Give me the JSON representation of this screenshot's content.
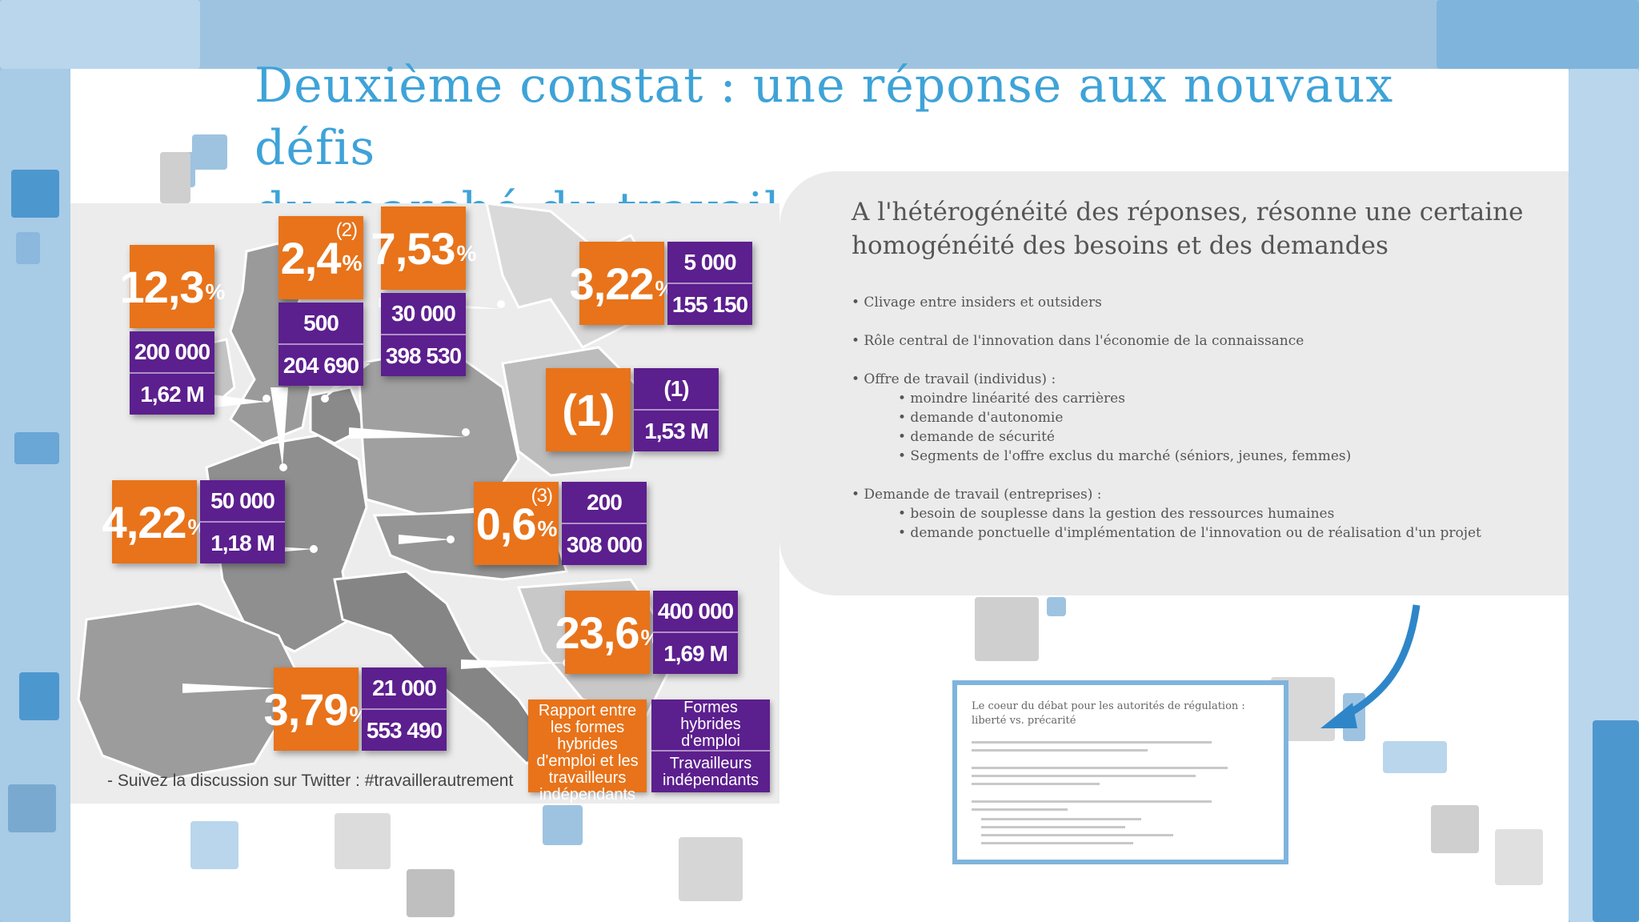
{
  "title": {
    "line1": "Deuxième constat : une réponse aux nouvaux défis",
    "line2": "du marché du travail en Europe"
  },
  "right_panel": {
    "heading": "A l'hétérogénéité des réponses, résonne une certaine homogénéité des besoins et des demandes",
    "bullets": [
      "• Clivage entre insiders et outsiders",
      "• Rôle central de l'innovation dans l'économie de la connaissance",
      "• Offre de travail (individus) :",
      "• moindre linéarité des carrières",
      "• demande d'autonomie",
      "• demande de sécurité",
      "• Segments de l'offre exclus du marché (séniors, jeunes, femmes)",
      "• Demande de travail (entreprises) :",
      "• besoin de souplesse dans la gestion des ressources humaines",
      "• demande ponctuelle d'implémentation de l'innovation ou de réalisation d'un projet"
    ]
  },
  "map": {
    "uk": {
      "pct": "12,3",
      "unit": "%",
      "hybrid": "200 000",
      "indep": "1,62 M"
    },
    "be": {
      "pct": "2,4",
      "unit": "%",
      "note": "(2)",
      "hybrid": "500",
      "indep": "204 690"
    },
    "nl": {
      "pct": "7,53",
      "unit": "%",
      "hybrid": "30 000",
      "indep": "398 530"
    },
    "se": {
      "pct": "3,22",
      "unit": "%",
      "hybrid": "5 000",
      "indep": "155 150"
    },
    "de": {
      "pct": "(1)",
      "hybrid": "(1)",
      "indep": "1,53 M"
    },
    "fr": {
      "pct": "4,22",
      "unit": "%",
      "hybrid": "50 000",
      "indep": "1,18 M"
    },
    "at": {
      "pct": "0,6",
      "unit": "%",
      "note": "(3)",
      "hybrid": "200",
      "indep": "308 000"
    },
    "it": {
      "pct": "23,6",
      "unit": "%",
      "hybrid": "400 000",
      "indep": "1,69 M"
    },
    "es": {
      "pct": "3,79",
      "unit": "%",
      "hybrid": "21 000",
      "indep": "553 490"
    },
    "legend_ratio": "Rapport entre les formes hybrides d'emploi et les travailleurs indépendants",
    "legend_hybrid": "Formes hybrides d'emploi",
    "legend_indep": "Travailleurs indépendants",
    "caption": "- Suivez la discussion sur Twitter : #travaillerautrement"
  },
  "thumbnail": {
    "title": "Le coeur du débat pour les autorités de régulation : liberté vs. précarité"
  },
  "colors": {
    "title_blue": "#3ea3d8",
    "orange": "#e8731a",
    "purple": "#5c1f8e"
  }
}
